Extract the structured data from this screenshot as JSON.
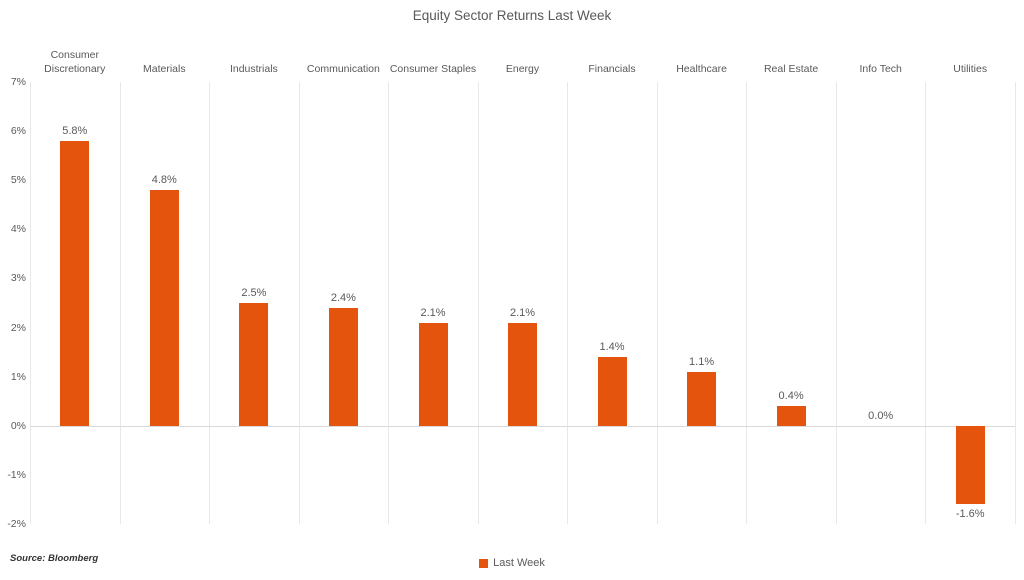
{
  "chart_data": {
    "type": "bar",
    "title": "Equity Sector Returns Last Week",
    "categories": [
      "Consumer Discretionary",
      "Materials",
      "Industrials",
      "Communication",
      "Consumer Staples",
      "Energy",
      "Financials",
      "Healthcare",
      "Real Estate",
      "Info Tech",
      "Utilities"
    ],
    "series": [
      {
        "name": "Last Week",
        "values": [
          5.8,
          4.8,
          2.5,
          2.4,
          2.1,
          2.1,
          1.4,
          1.1,
          0.4,
          0.0,
          -1.6
        ]
      }
    ],
    "value_labels": [
      "5.8%",
      "4.8%",
      "2.5%",
      "2.4%",
      "2.1%",
      "2.1%",
      "1.4%",
      "1.1%",
      "0.4%",
      "0.0%",
      "-1.6%"
    ],
    "xlabel": "",
    "ylabel": "",
    "ylim": [
      -2,
      7
    ],
    "yticks": [
      7,
      6,
      5,
      4,
      3,
      2,
      1,
      0,
      -1,
      -2
    ],
    "ytick_labels": [
      "7%",
      "6%",
      "5%",
      "4%",
      "3%",
      "2%",
      "1%",
      "0%",
      "-1%",
      "-2%"
    ],
    "grid": "vertical-category-separators-plus-zero-line",
    "legend_position": "bottom-center",
    "bar_color": "#e4540c",
    "gridline_color": "#e8e8e8",
    "zero_line_color": "#d9d9d9",
    "text_color": "#595959",
    "source": "Source: Bloomberg"
  }
}
